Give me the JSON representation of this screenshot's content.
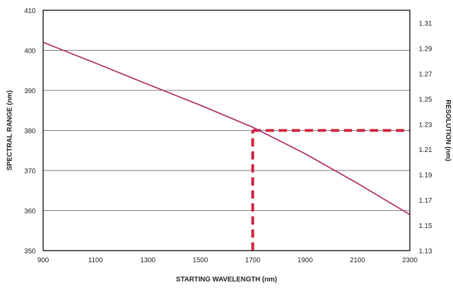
{
  "chart_data": {
    "type": "line",
    "title": "",
    "xlabel": "STARTING WAVELENGTH (nm)",
    "ylabel": "SPECTRAL RANGE (nm)",
    "y2label": "RESOLUTION (nm)",
    "xlim": [
      900,
      2300
    ],
    "ylim": [
      350,
      410
    ],
    "y2lim": [
      1.13,
      1.32
    ],
    "x_ticks": [
      "900",
      "1100",
      "1300",
      "1500",
      "1700",
      "1900",
      "2100",
      "2300"
    ],
    "y_ticks": [
      "350",
      "360",
      "370",
      "380",
      "390",
      "400",
      "410"
    ],
    "y2_ticks": [
      "1.13",
      "1.15",
      "1.17",
      "1.19",
      "1.21",
      "1.23",
      "1.25",
      "1.27",
      "1.29",
      "1.31"
    ],
    "grid": {
      "horizontal": true,
      "vertical": false
    },
    "series": [
      {
        "x": [
          900,
          1100,
          1300,
          1500,
          1700,
          1900,
          2100,
          2300
        ],
        "y": [
          402,
          396.8,
          391.5,
          386.3,
          380.8,
          374.2,
          366.8,
          359
        ],
        "color": "#b0306a"
      }
    ],
    "annotations": [
      {
        "type": "dashed-marker",
        "x": 1700,
        "y": 380,
        "color": "#d0203a"
      }
    ]
  }
}
